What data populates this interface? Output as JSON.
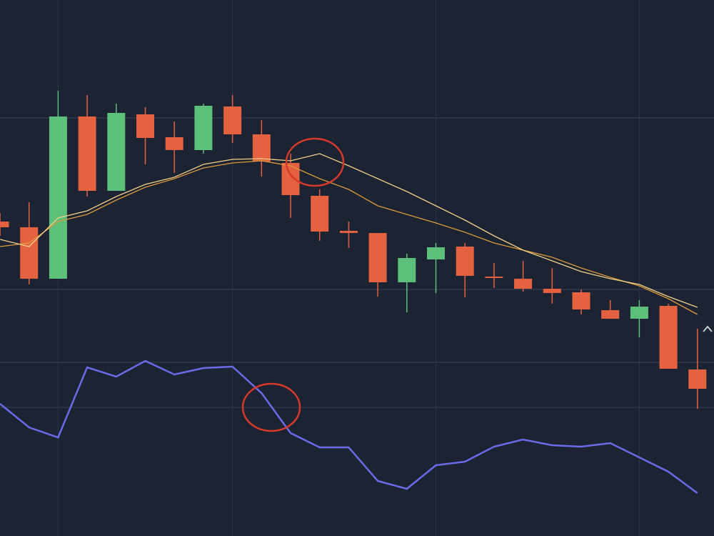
{
  "chart_data": {
    "type": "candlestick",
    "x": [
      0,
      1,
      2,
      3,
      4,
      5,
      6,
      7,
      8,
      9,
      10,
      11,
      12,
      13,
      14,
      15,
      16,
      17,
      18,
      19,
      20,
      21,
      22,
      23,
      24
    ],
    "open": [
      440,
      432,
      360,
      587,
      483,
      590,
      558,
      540,
      601,
      562,
      522,
      476,
      427,
      424,
      355,
      387,
      405,
      363,
      360,
      346,
      341,
      316,
      304,
      322,
      233
    ],
    "high": [
      452,
      467,
      623,
      617,
      605,
      600,
      580,
      605,
      617,
      582,
      535,
      485,
      440,
      424,
      395,
      410,
      410,
      382,
      385,
      375,
      345,
      330,
      330,
      325,
      290
    ],
    "low": [
      420,
      352,
      360,
      475,
      483,
      520,
      508,
      535,
      550,
      503,
      445,
      413,
      403,
      335,
      313,
      340,
      334,
      347,
      342,
      325,
      310,
      304,
      278,
      234,
      178
    ],
    "close": [
      432,
      360,
      587,
      483,
      592,
      557,
      540,
      602,
      562,
      524,
      477,
      426,
      424,
      355,
      389,
      404,
      364,
      361,
      346,
      340,
      317,
      304,
      321,
      234,
      206
    ],
    "up_color": "#5cbf7a",
    "down_color": "#e4623f",
    "series": [
      {
        "color": "#dd9a3c",
        "values": [
          405,
          410,
          440,
          450,
          470,
          488,
          500,
          515,
          522,
          525,
          518,
          500,
          485,
          462,
          450,
          438,
          425,
          410,
          400,
          390,
          375,
          362,
          350,
          332,
          310
        ]
      },
      {
        "color": "#f2d088",
        "values": [
          415,
          405,
          445,
          455,
          475,
          492,
          502,
          520,
          527,
          528,
          525,
          535,
          518,
          500,
          482,
          462,
          442,
          420,
          400,
          385,
          370,
          360,
          352,
          335,
          320
        ]
      },
      {
        "color": "#6b6ae8",
        "axis": "y2",
        "values": [
          185,
          152,
          138,
          236,
          223,
          245,
          226,
          235,
          237,
          200,
          144,
          124,
          124,
          77,
          66,
          99,
          104,
          125,
          135,
          127,
          125,
          130,
          110,
          90,
          60
        ]
      }
    ],
    "xlim": [
      0,
      24.57
    ],
    "ylim": [
      0,
      750
    ],
    "y2lim": [
      0,
      750
    ],
    "xticks": [
      2,
      8,
      15,
      22
    ],
    "yticks": [
      585,
      345,
      243,
      180
    ],
    "grid": true
  }
}
